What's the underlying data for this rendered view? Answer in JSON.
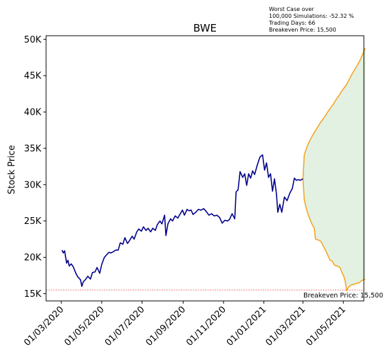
{
  "chart_data": {
    "type": "line",
    "title": "BWE",
    "xlabel": "",
    "ylabel": "Stock Price",
    "info": [
      "Worst Case over",
      "100,000 Simulations: -52.32 %",
      "Trading Days: 66",
      "Breakeven Price: 15,500"
    ],
    "breakeven": {
      "value": 15500,
      "label": "Breakeven Price: 15,500",
      "color": "#e05050"
    },
    "x_ticks": [
      "01/03/2020",
      "01/05/2020",
      "01/07/2020",
      "01/09/2020",
      "01/11/2020",
      "01/01/2021",
      "01/03/2021",
      "01/05/2021"
    ],
    "x_tick_dates": [
      "2020-03-01",
      "2020-05-01",
      "2020-07-01",
      "2020-09-01",
      "2020-11-01",
      "2021-01-01",
      "2021-03-01",
      "2021-05-01"
    ],
    "xlim": [
      "2020-02-07",
      "2021-06-01"
    ],
    "y_ticks": [
      15000,
      20000,
      25000,
      30000,
      35000,
      40000,
      45000,
      50000
    ],
    "y_tick_labels": [
      "15K",
      "20K",
      "25K",
      "30K",
      "35K",
      "40K",
      "45K",
      "50K"
    ],
    "ylim": [
      14000,
      50500
    ],
    "colors": {
      "history": "#00008b",
      "upper": "#f5a623",
      "lower": "#f5a623",
      "band": "#e3f1e3"
    },
    "series": [
      {
        "role": "history",
        "points": [
          [
            "2020-03-02",
            21000
          ],
          [
            "2020-03-04",
            20600
          ],
          [
            "2020-03-06",
            20900
          ],
          [
            "2020-03-09",
            19200
          ],
          [
            "2020-03-11",
            19600
          ],
          [
            "2020-03-13",
            18800
          ],
          [
            "2020-03-16",
            19100
          ],
          [
            "2020-03-19",
            18700
          ],
          [
            "2020-03-23",
            17800
          ],
          [
            "2020-03-26",
            17300
          ],
          [
            "2020-03-30",
            16900
          ],
          [
            "2020-04-01",
            16000
          ],
          [
            "2020-04-03",
            16600
          ],
          [
            "2020-04-07",
            17000
          ],
          [
            "2020-04-10",
            17400
          ],
          [
            "2020-04-14",
            17000
          ],
          [
            "2020-04-17",
            17900
          ],
          [
            "2020-04-21",
            18000
          ],
          [
            "2020-04-24",
            18600
          ],
          [
            "2020-04-28",
            17800
          ],
          [
            "2020-05-01",
            19000
          ],
          [
            "2020-05-05",
            20000
          ],
          [
            "2020-05-08",
            20300
          ],
          [
            "2020-05-12",
            20700
          ],
          [
            "2020-05-15",
            20600
          ],
          [
            "2020-05-19",
            20800
          ],
          [
            "2020-05-22",
            21000
          ],
          [
            "2020-05-26",
            21000
          ],
          [
            "2020-05-29",
            22000
          ],
          [
            "2020-06-02",
            21800
          ],
          [
            "2020-06-05",
            22700
          ],
          [
            "2020-06-09",
            21900
          ],
          [
            "2020-06-12",
            22300
          ],
          [
            "2020-06-16",
            22900
          ],
          [
            "2020-06-19",
            22500
          ],
          [
            "2020-06-23",
            23500
          ],
          [
            "2020-06-26",
            23900
          ],
          [
            "2020-06-30",
            23600
          ],
          [
            "2020-07-03",
            24200
          ],
          [
            "2020-07-07",
            23700
          ],
          [
            "2020-07-10",
            24000
          ],
          [
            "2020-07-14",
            23500
          ],
          [
            "2020-07-17",
            24000
          ],
          [
            "2020-07-21",
            23700
          ],
          [
            "2020-07-24",
            24500
          ],
          [
            "2020-07-28",
            25000
          ],
          [
            "2020-07-31",
            24600
          ],
          [
            "2020-08-04",
            25800
          ],
          [
            "2020-08-06",
            23000
          ],
          [
            "2020-08-09",
            24600
          ],
          [
            "2020-08-13",
            25300
          ],
          [
            "2020-08-16",
            25000
          ],
          [
            "2020-08-20",
            25700
          ],
          [
            "2020-08-24",
            25400
          ],
          [
            "2020-08-27",
            25900
          ],
          [
            "2020-08-31",
            26500
          ],
          [
            "2020-09-03",
            25800
          ],
          [
            "2020-09-07",
            26600
          ],
          [
            "2020-09-10",
            26400
          ],
          [
            "2020-09-13",
            26500
          ],
          [
            "2020-09-16",
            25900
          ],
          [
            "2020-09-20",
            26200
          ],
          [
            "2020-09-24",
            26600
          ],
          [
            "2020-09-28",
            26500
          ],
          [
            "2020-10-02",
            26700
          ],
          [
            "2020-10-06",
            26300
          ],
          [
            "2020-10-10",
            25800
          ],
          [
            "2020-10-14",
            26000
          ],
          [
            "2020-10-18",
            25700
          ],
          [
            "2020-10-22",
            25800
          ],
          [
            "2020-10-26",
            25500
          ],
          [
            "2020-10-30",
            24700
          ],
          [
            "2020-11-03",
            25100
          ],
          [
            "2020-11-07",
            25000
          ],
          [
            "2020-11-10",
            25200
          ],
          [
            "2020-11-14",
            26000
          ],
          [
            "2020-11-18",
            25300
          ],
          [
            "2020-11-20",
            29000
          ],
          [
            "2020-11-23",
            29300
          ],
          [
            "2020-11-26",
            31800
          ],
          [
            "2020-11-30",
            31000
          ],
          [
            "2020-12-03",
            31500
          ],
          [
            "2020-12-06",
            29900
          ],
          [
            "2020-12-09",
            31500
          ],
          [
            "2020-12-12",
            30900
          ],
          [
            "2020-12-15",
            31900
          ],
          [
            "2020-12-18",
            31400
          ],
          [
            "2020-12-22",
            32700
          ],
          [
            "2020-12-26",
            33800
          ],
          [
            "2020-12-30",
            34100
          ],
          [
            "2021-01-02",
            32000
          ],
          [
            "2021-01-05",
            33000
          ],
          [
            "2021-01-08",
            31000
          ],
          [
            "2021-01-11",
            31500
          ],
          [
            "2021-01-14",
            29100
          ],
          [
            "2021-01-17",
            30800
          ],
          [
            "2021-01-20",
            28700
          ],
          [
            "2021-01-22",
            26200
          ],
          [
            "2021-01-25",
            27300
          ],
          [
            "2021-01-28",
            26200
          ],
          [
            "2021-02-01",
            28300
          ],
          [
            "2021-02-05",
            27800
          ],
          [
            "2021-02-09",
            28800
          ],
          [
            "2021-02-13",
            29500
          ],
          [
            "2021-02-16",
            30900
          ],
          [
            "2021-02-19",
            30600
          ],
          [
            "2021-02-22",
            30700
          ],
          [
            "2021-02-25",
            30600
          ],
          [
            "2021-03-01",
            30800
          ]
        ]
      },
      {
        "role": "upper",
        "points": [
          [
            "2021-03-01",
            30800
          ],
          [
            "2021-03-03",
            34100
          ],
          [
            "2021-03-07",
            35200
          ],
          [
            "2021-03-11",
            36000
          ],
          [
            "2021-03-15",
            36700
          ],
          [
            "2021-03-19",
            37300
          ],
          [
            "2021-03-23",
            37900
          ],
          [
            "2021-03-27",
            38500
          ],
          [
            "2021-03-31",
            39000
          ],
          [
            "2021-04-04",
            39500
          ],
          [
            "2021-04-08",
            40100
          ],
          [
            "2021-04-12",
            40600
          ],
          [
            "2021-04-16",
            41100
          ],
          [
            "2021-04-20",
            41700
          ],
          [
            "2021-04-24",
            42200
          ],
          [
            "2021-04-28",
            42800
          ],
          [
            "2021-05-02",
            43300
          ],
          [
            "2021-05-06",
            43800
          ],
          [
            "2021-05-10",
            44500
          ],
          [
            "2021-05-14",
            45200
          ],
          [
            "2021-05-18",
            45800
          ],
          [
            "2021-05-22",
            46400
          ],
          [
            "2021-05-26",
            47100
          ],
          [
            "2021-05-30",
            47900
          ],
          [
            "2021-06-03",
            48800
          ]
        ]
      },
      {
        "role": "lower",
        "points": [
          [
            "2021-03-01",
            30800
          ],
          [
            "2021-03-03",
            27900
          ],
          [
            "2021-03-06",
            26700
          ],
          [
            "2021-03-10",
            25600
          ],
          [
            "2021-03-14",
            24700
          ],
          [
            "2021-03-18",
            24000
          ],
          [
            "2021-03-20",
            22500
          ],
          [
            "2021-03-24",
            22400
          ],
          [
            "2021-03-28",
            22200
          ],
          [
            "2021-04-01",
            21500
          ],
          [
            "2021-04-05",
            20800
          ],
          [
            "2021-04-08",
            20200
          ],
          [
            "2021-04-11",
            19600
          ],
          [
            "2021-04-14",
            19500
          ],
          [
            "2021-04-18",
            18900
          ],
          [
            "2021-04-22",
            18800
          ],
          [
            "2021-04-26",
            18600
          ],
          [
            "2021-04-29",
            17900
          ],
          [
            "2021-05-02",
            17300
          ],
          [
            "2021-05-04",
            16600
          ],
          [
            "2021-05-06",
            15400
          ],
          [
            "2021-05-09",
            15900
          ],
          [
            "2021-05-13",
            16200
          ],
          [
            "2021-05-17",
            16300
          ],
          [
            "2021-05-21",
            16400
          ],
          [
            "2021-05-25",
            16500
          ],
          [
            "2021-05-29",
            16800
          ],
          [
            "2021-06-03",
            17000
          ]
        ]
      }
    ]
  }
}
